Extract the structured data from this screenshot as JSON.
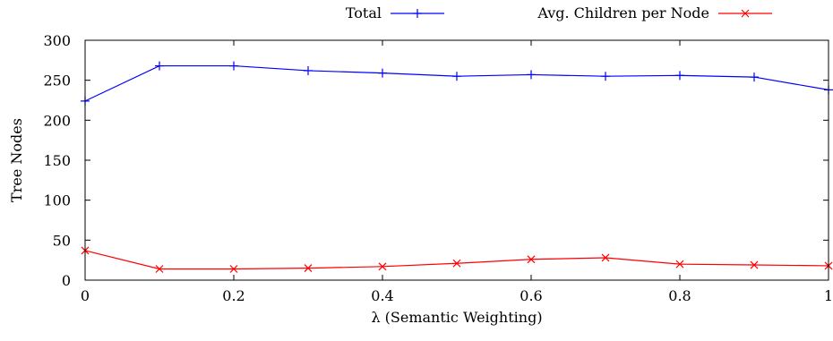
{
  "chart_data": {
    "type": "line",
    "xlabel": "λ (Semantic Weighting)",
    "ylabel": "Tree Nodes",
    "xlim": [
      0,
      1
    ],
    "ylim": [
      0,
      300
    ],
    "x_ticks": [
      0,
      0.2,
      0.4,
      0.6,
      0.8,
      1
    ],
    "x_tick_labels": [
      "0",
      "0.2",
      "0.4",
      "0.6",
      "0.8",
      "1"
    ],
    "y_ticks": [
      0,
      50,
      100,
      150,
      200,
      250,
      300
    ],
    "y_tick_labels": [
      "0",
      "50",
      "100",
      "150",
      "200",
      "250",
      "300"
    ],
    "grid": false,
    "legend_position": "top",
    "x": [
      0,
      0.1,
      0.2,
      0.3,
      0.4,
      0.5,
      0.6,
      0.7,
      0.8,
      0.9,
      1.0
    ],
    "series": [
      {
        "name": "Total",
        "color": "#0000ff",
        "marker": "plus",
        "values": [
          224,
          268,
          268,
          262,
          259,
          255,
          257,
          255,
          256,
          254,
          238
        ]
      },
      {
        "name": "Avg. Children per Node",
        "color": "#ff0000",
        "marker": "cross",
        "values": [
          37,
          14,
          14,
          15,
          17,
          21,
          26,
          28,
          20,
          19,
          18
        ]
      }
    ]
  }
}
